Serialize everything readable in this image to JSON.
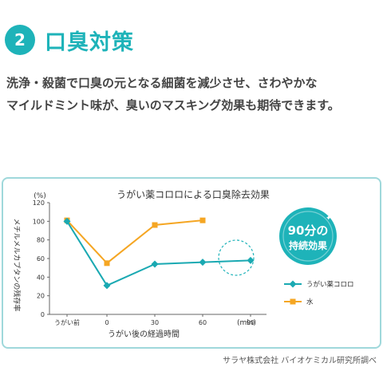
{
  "header": {
    "badge_number": "2",
    "title": "口臭対策"
  },
  "description": {
    "line1": "洗浄・殺菌で口臭の元となる細菌を減少させ、さわやかな",
    "line2": "マイルドミント味が、臭いのマスキング効果も期待できます。"
  },
  "source": "サラヤ株式会社 バイオケミカル研究所調べ",
  "callout": {
    "line1": "90分の",
    "line2": "持続効果"
  },
  "colors": {
    "accent": "#1eb3b9",
    "series_korolo": "#1aa9b2",
    "series_water": "#f5a623"
  },
  "chart_data": {
    "type": "line",
    "title": "うがい薬コロロによる口臭除去効果",
    "ylabel": "メチルメルカプタンの残存率",
    "yunit": "(%)",
    "xlabel": "うがい後の経過時間",
    "xunit": "(min)",
    "ylim": [
      0,
      120
    ],
    "yticks": [
      0,
      20,
      40,
      60,
      80,
      100,
      120
    ],
    "xticks": [
      {
        "label": "うがい前",
        "x": -25
      },
      {
        "label": "0",
        "x": 0
      },
      {
        "label": "30",
        "x": 30
      },
      {
        "label": "60",
        "x": 60
      },
      {
        "label": "90",
        "x": 90
      }
    ],
    "xlim": [
      -30,
      100
    ],
    "grid": false,
    "legend_position": "right",
    "series": [
      {
        "name": "うがい薬コロロ",
        "marker": "diamond",
        "points": [
          {
            "x": -25,
            "y": 100
          },
          {
            "x": 0,
            "y": 31
          },
          {
            "x": 30,
            "y": 54
          },
          {
            "x": 60,
            "y": 56
          },
          {
            "x": 90,
            "y": 58
          }
        ]
      },
      {
        "name": "水",
        "marker": "square",
        "points": [
          {
            "x": -25,
            "y": 101
          },
          {
            "x": 0,
            "y": 55
          },
          {
            "x": 30,
            "y": 96
          },
          {
            "x": 60,
            "y": 101
          }
        ]
      }
    ]
  }
}
